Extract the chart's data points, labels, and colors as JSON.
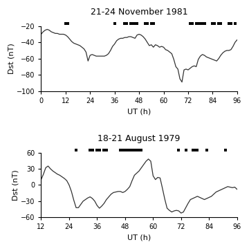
{
  "panel1": {
    "title": "21-24 November 1981",
    "xlabel": "UT (h)",
    "ylabel": "Dst (nT)",
    "xlim": [
      0,
      96
    ],
    "ylim": [
      -100,
      -20
    ],
    "xticks": [
      0,
      12,
      24,
      36,
      48,
      60,
      72,
      84,
      96
    ],
    "yticks": [
      -100,
      -80,
      -60,
      -40,
      -20
    ],
    "dst_data": [
      [
        0,
        -30
      ],
      [
        1,
        -27
      ],
      [
        2,
        -25
      ],
      [
        3,
        -24
      ],
      [
        4,
        -25
      ],
      [
        5,
        -27
      ],
      [
        6,
        -28
      ],
      [
        7,
        -29
      ],
      [
        8,
        -29
      ],
      [
        9,
        -30
      ],
      [
        10,
        -30
      ],
      [
        11,
        -30
      ],
      [
        12,
        -31
      ],
      [
        13,
        -33
      ],
      [
        14,
        -36
      ],
      [
        15,
        -39
      ],
      [
        16,
        -41
      ],
      [
        17,
        -42
      ],
      [
        18,
        -43
      ],
      [
        19,
        -44
      ],
      [
        20,
        -46
      ],
      [
        21,
        -48
      ],
      [
        22,
        -52
      ],
      [
        23,
        -63
      ],
      [
        24,
        -56
      ],
      [
        25,
        -55
      ],
      [
        26,
        -56
      ],
      [
        27,
        -57
      ],
      [
        28,
        -57
      ],
      [
        29,
        -57
      ],
      [
        30,
        -57
      ],
      [
        31,
        -57
      ],
      [
        32,
        -56
      ],
      [
        33,
        -54
      ],
      [
        34,
        -50
      ],
      [
        35,
        -45
      ],
      [
        36,
        -42
      ],
      [
        37,
        -38
      ],
      [
        38,
        -36
      ],
      [
        39,
        -35
      ],
      [
        40,
        -35
      ],
      [
        41,
        -34
      ],
      [
        42,
        -34
      ],
      [
        43,
        -33
      ],
      [
        44,
        -33
      ],
      [
        45,
        -34
      ],
      [
        46,
        -35
      ],
      [
        47,
        -31
      ],
      [
        48,
        -30
      ],
      [
        49,
        -31
      ],
      [
        50,
        -33
      ],
      [
        51,
        -36
      ],
      [
        52,
        -40
      ],
      [
        53,
        -44
      ],
      [
        54,
        -43
      ],
      [
        55,
        -46
      ],
      [
        56,
        -43
      ],
      [
        57,
        -44
      ],
      [
        58,
        -46
      ],
      [
        59,
        -45
      ],
      [
        60,
        -46
      ],
      [
        61,
        -49
      ],
      [
        62,
        -50
      ],
      [
        63,
        -52
      ],
      [
        64,
        -54
      ],
      [
        65,
        -61
      ],
      [
        66,
        -70
      ],
      [
        67,
        -73
      ],
      [
        68,
        -85
      ],
      [
        69,
        -89
      ],
      [
        70,
        -74
      ],
      [
        71,
        -73
      ],
      [
        72,
        -74
      ],
      [
        73,
        -72
      ],
      [
        74,
        -70
      ],
      [
        75,
        -69
      ],
      [
        76,
        -70
      ],
      [
        77,
        -61
      ],
      [
        78,
        -57
      ],
      [
        79,
        -55
      ],
      [
        80,
        -56
      ],
      [
        81,
        -58
      ],
      [
        82,
        -59
      ],
      [
        83,
        -60
      ],
      [
        84,
        -61
      ],
      [
        85,
        -62
      ],
      [
        86,
        -63
      ],
      [
        87,
        -60
      ],
      [
        88,
        -56
      ],
      [
        89,
        -53
      ],
      [
        90,
        -51
      ],
      [
        91,
        -50
      ],
      [
        92,
        -50
      ],
      [
        93,
        -49
      ],
      [
        94,
        -45
      ],
      [
        95,
        -40
      ],
      [
        96,
        -37
      ]
    ],
    "squares": [
      12,
      13,
      36,
      41,
      42,
      44,
      45,
      46,
      47,
      51,
      52,
      54,
      55,
      73,
      74,
      76,
      77,
      78,
      79,
      80,
      84,
      85,
      87,
      88,
      92,
      93,
      95
    ]
  },
  "panel2": {
    "title": "18-21 August 1979",
    "xlabel": "UT (h)",
    "ylabel": "Dst (nT)",
    "xlim": [
      12,
      96
    ],
    "ylim": [
      -60,
      60
    ],
    "xticks": [
      12,
      24,
      36,
      48,
      60,
      72,
      84,
      96
    ],
    "yticks": [
      -60,
      -30,
      0,
      30,
      60
    ],
    "dst_data": [
      [
        12,
        10
      ],
      [
        13,
        20
      ],
      [
        14,
        32
      ],
      [
        15,
        35
      ],
      [
        16,
        30
      ],
      [
        17,
        26
      ],
      [
        18,
        23
      ],
      [
        19,
        20
      ],
      [
        20,
        18
      ],
      [
        21,
        15
      ],
      [
        22,
        12
      ],
      [
        23,
        8
      ],
      [
        24,
        0
      ],
      [
        25,
        -12
      ],
      [
        26,
        -28
      ],
      [
        27,
        -42
      ],
      [
        28,
        -42
      ],
      [
        29,
        -36
      ],
      [
        30,
        -30
      ],
      [
        31,
        -27
      ],
      [
        32,
        -24
      ],
      [
        33,
        -22
      ],
      [
        34,
        -25
      ],
      [
        35,
        -30
      ],
      [
        36,
        -38
      ],
      [
        37,
        -43
      ],
      [
        38,
        -39
      ],
      [
        39,
        -34
      ],
      [
        40,
        -27
      ],
      [
        41,
        -22
      ],
      [
        42,
        -17
      ],
      [
        43,
        -14
      ],
      [
        44,
        -13
      ],
      [
        45,
        -12
      ],
      [
        46,
        -12
      ],
      [
        47,
        -14
      ],
      [
        48,
        -12
      ],
      [
        49,
        -8
      ],
      [
        50,
        -3
      ],
      [
        51,
        8
      ],
      [
        52,
        18
      ],
      [
        53,
        22
      ],
      [
        54,
        26
      ],
      [
        55,
        32
      ],
      [
        56,
        38
      ],
      [
        57,
        44
      ],
      [
        58,
        48
      ],
      [
        59,
        44
      ],
      [
        60,
        17
      ],
      [
        61,
        10
      ],
      [
        62,
        14
      ],
      [
        63,
        13
      ],
      [
        64,
        -6
      ],
      [
        65,
        -26
      ],
      [
        66,
        -43
      ],
      [
        67,
        -47
      ],
      [
        68,
        -50
      ],
      [
        69,
        -48
      ],
      [
        70,
        -47
      ],
      [
        71,
        -48
      ],
      [
        72,
        -52
      ],
      [
        73,
        -50
      ],
      [
        74,
        -42
      ],
      [
        75,
        -34
      ],
      [
        76,
        -27
      ],
      [
        77,
        -25
      ],
      [
        78,
        -23
      ],
      [
        79,
        -21
      ],
      [
        80,
        -23
      ],
      [
        81,
        -25
      ],
      [
        82,
        -27
      ],
      [
        83,
        -25
      ],
      [
        84,
        -23
      ],
      [
        85,
        -21
      ],
      [
        86,
        -17
      ],
      [
        87,
        -13
      ],
      [
        88,
        -11
      ],
      [
        89,
        -9
      ],
      [
        90,
        -7
      ],
      [
        91,
        -5
      ],
      [
        92,
        -3
      ],
      [
        93,
        -4
      ],
      [
        94,
        -5
      ],
      [
        95,
        -4
      ],
      [
        96,
        -8
      ]
    ],
    "squares": [
      27,
      33,
      34,
      36,
      37,
      39,
      40,
      46,
      47,
      48,
      49,
      50,
      51,
      52,
      53,
      54,
      55,
      71,
      74,
      77,
      78,
      79,
      83,
      91
    ]
  },
  "line_color": "#333333",
  "square_color": "#000000",
  "square_size": 3.5,
  "bg_color": "#ffffff"
}
